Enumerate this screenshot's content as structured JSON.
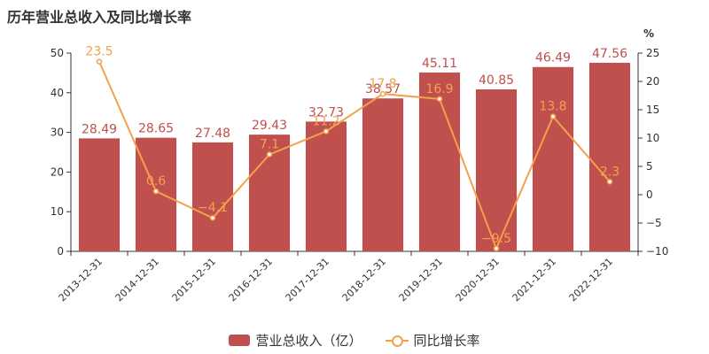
{
  "title": "历年营业总收入及同比增长率",
  "chart_data": {
    "type": "bar",
    "categories": [
      "2013-12-31",
      "2014-12-31",
      "2015-12-31",
      "2016-12-31",
      "2017-12-31",
      "2018-12-31",
      "2019-12-31",
      "2020-12-31",
      "2021-12-31",
      "2022-12-31"
    ],
    "series": [
      {
        "name": "营业总收入（亿）",
        "type": "bar",
        "axis": "left",
        "values": [
          28.49,
          28.65,
          27.48,
          29.43,
          32.73,
          38.57,
          45.11,
          40.85,
          46.49,
          47.56
        ],
        "labels": [
          "28.49",
          "28.65",
          "27.48",
          "29.43",
          "32.73",
          "38.57",
          "45.11",
          "40.85",
          "46.49",
          "47.56"
        ]
      },
      {
        "name": "同比增长率",
        "type": "line",
        "axis": "right",
        "values": [
          23.5,
          0.6,
          -4.1,
          7.1,
          11.2,
          17.8,
          16.9,
          -9.5,
          13.8,
          2.3
        ],
        "labels": [
          "23.5",
          "0.6",
          "−4.1",
          "7.1",
          "11.2",
          "17.8",
          "16.9",
          "−9.5",
          "13.8",
          "2.3"
        ]
      }
    ],
    "left_axis": {
      "min": 0,
      "max": 50,
      "ticks": [
        0,
        10,
        20,
        30,
        40,
        50
      ],
      "tick_labels": [
        "0",
        "10",
        "20",
        "30",
        "40",
        "50"
      ]
    },
    "right_axis": {
      "min": -10,
      "max": 25,
      "ticks": [
        -10,
        -5,
        0,
        5,
        10,
        15,
        20,
        25
      ],
      "tick_labels": [
        "−10",
        "−5",
        "0",
        "5",
        "10",
        "15",
        "20",
        "25"
      ],
      "unit": "%"
    },
    "legend": "bottom",
    "grid": false,
    "colors": {
      "bar": "#c0504d",
      "line": "#f4a04c"
    }
  }
}
